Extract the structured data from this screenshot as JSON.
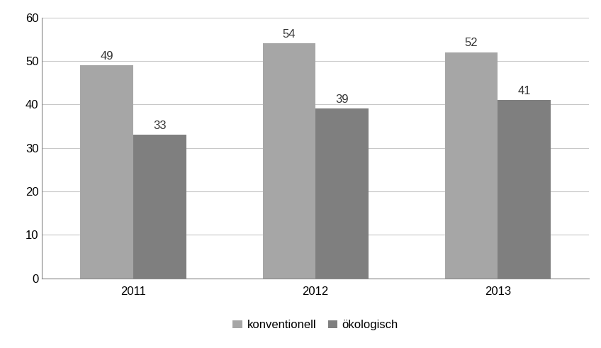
{
  "chart_data": {
    "type": "bar",
    "categories": [
      "2011",
      "2012",
      "2013"
    ],
    "series": [
      {
        "name": "konventionell",
        "color": "#a6a6a6",
        "values": [
          49,
          54,
          52
        ]
      },
      {
        "name": "ökologisch",
        "color": "#7f7f7f",
        "values": [
          33,
          39,
          41
        ]
      }
    ],
    "ylim": [
      0,
      60
    ],
    "yticks": [
      0,
      10,
      20,
      30,
      40,
      50,
      60
    ],
    "grid": true,
    "legend": "lower center",
    "data_labels": true
  }
}
